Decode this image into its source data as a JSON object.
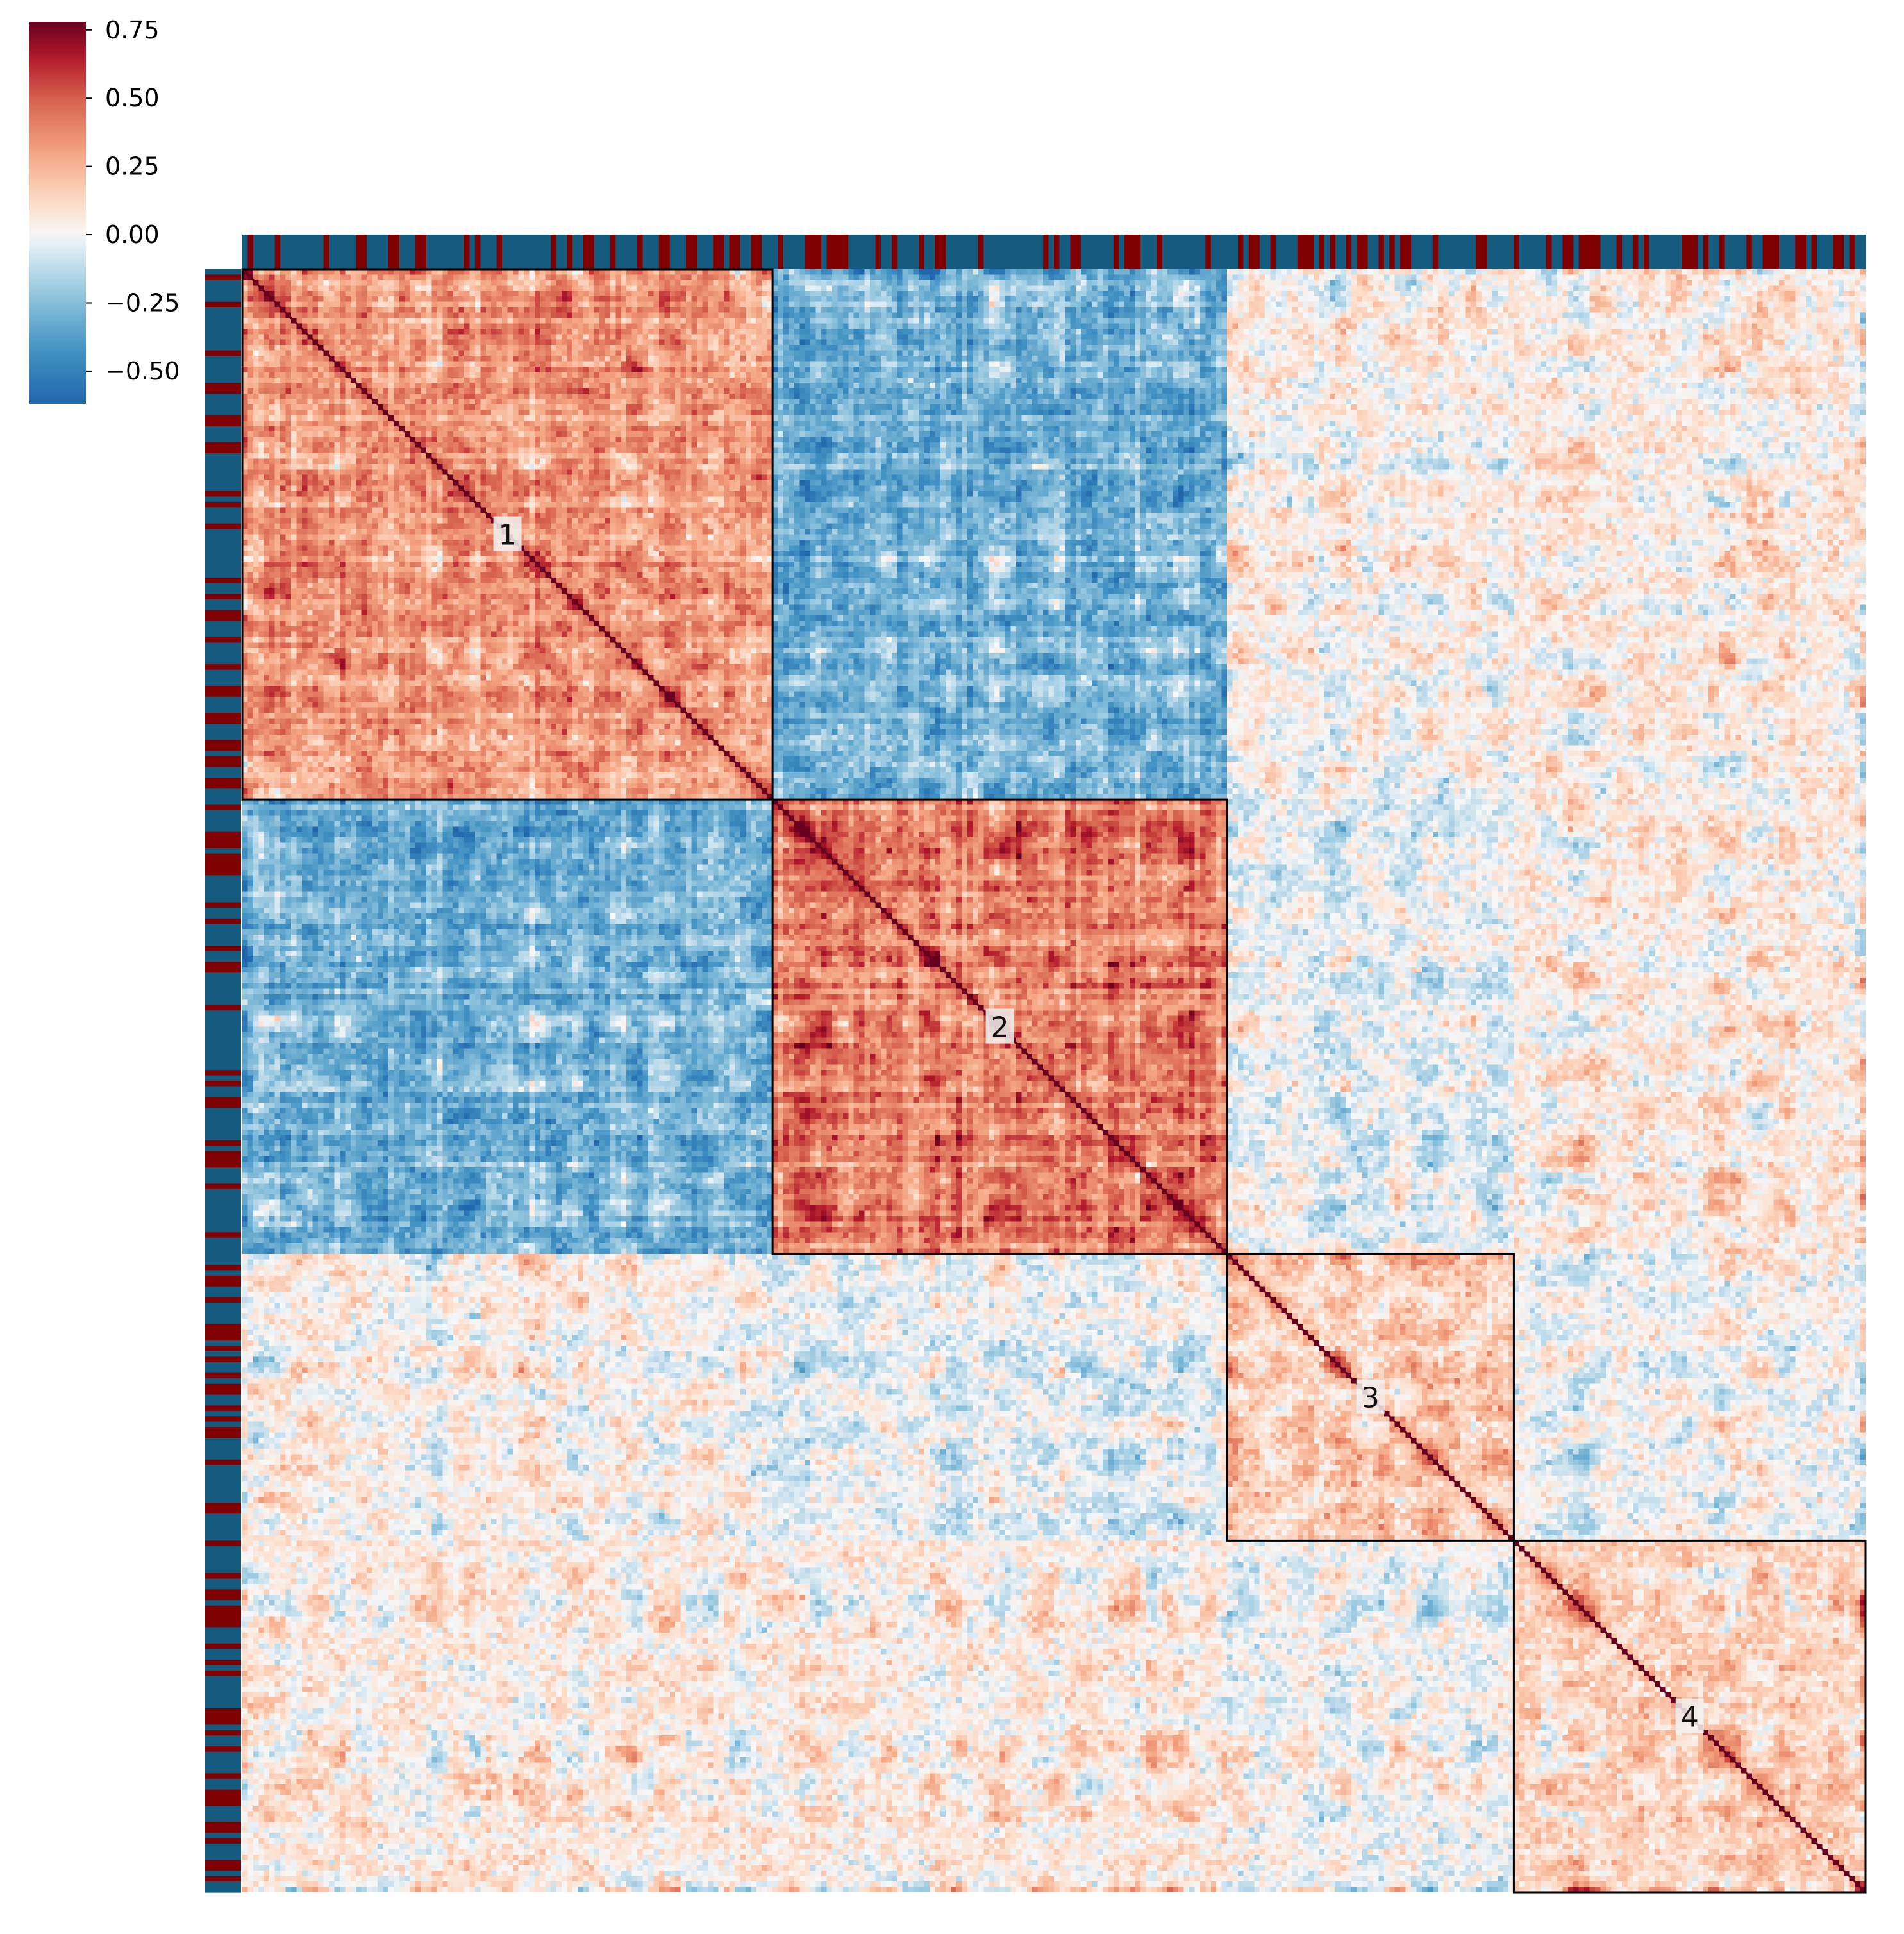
{
  "chart_data": {
    "type": "heatmap",
    "title": "",
    "xlabel": "",
    "ylabel": "",
    "colormap": "RdBu_r",
    "colormap_stops": [
      {
        "v": -0.62,
        "color": "#2166ac"
      },
      {
        "v": -0.42,
        "color": "#4393c3"
      },
      {
        "v": -0.22,
        "color": "#92c5de"
      },
      {
        "v": -0.08,
        "color": "#d1e5f0"
      },
      {
        "v": 0.0,
        "color": "#f7f7f7"
      },
      {
        "v": 0.12,
        "color": "#fddbc7"
      },
      {
        "v": 0.3,
        "color": "#f4a582"
      },
      {
        "v": 0.5,
        "color": "#d6604d"
      },
      {
        "v": 0.65,
        "color": "#b2182b"
      },
      {
        "v": 0.78,
        "color": "#67001f"
      }
    ],
    "colorbar": {
      "range": [
        -0.62,
        0.78
      ],
      "ticks": [
        0.75,
        0.5,
        0.25,
        0.0,
        -0.25,
        -0.5
      ],
      "tick_labels": [
        "0.75",
        "0.50",
        "0.25",
        "0.00",
        "−0.25",
        "−0.50"
      ]
    },
    "n": 300,
    "diagonal_value": 1.0,
    "clusters": [
      {
        "label": "1",
        "start": 0,
        "end": 98
      },
      {
        "label": "2",
        "start": 98,
        "end": 182
      },
      {
        "label": "3",
        "start": 182,
        "end": 235
      },
      {
        "label": "4",
        "start": 235,
        "end": 300
      }
    ],
    "block_means": [
      [
        0.32,
        -0.3,
        0.03,
        0.05
      ],
      [
        -0.3,
        0.4,
        -0.03,
        0.05
      ],
      [
        0.03,
        -0.03,
        0.15,
        0.0
      ],
      [
        0.05,
        0.05,
        0.0,
        0.14
      ]
    ],
    "annotation_colors": {
      "a": "#155b7f",
      "b": "#7f0000"
    },
    "annotation_b_fraction": 0.38
  }
}
